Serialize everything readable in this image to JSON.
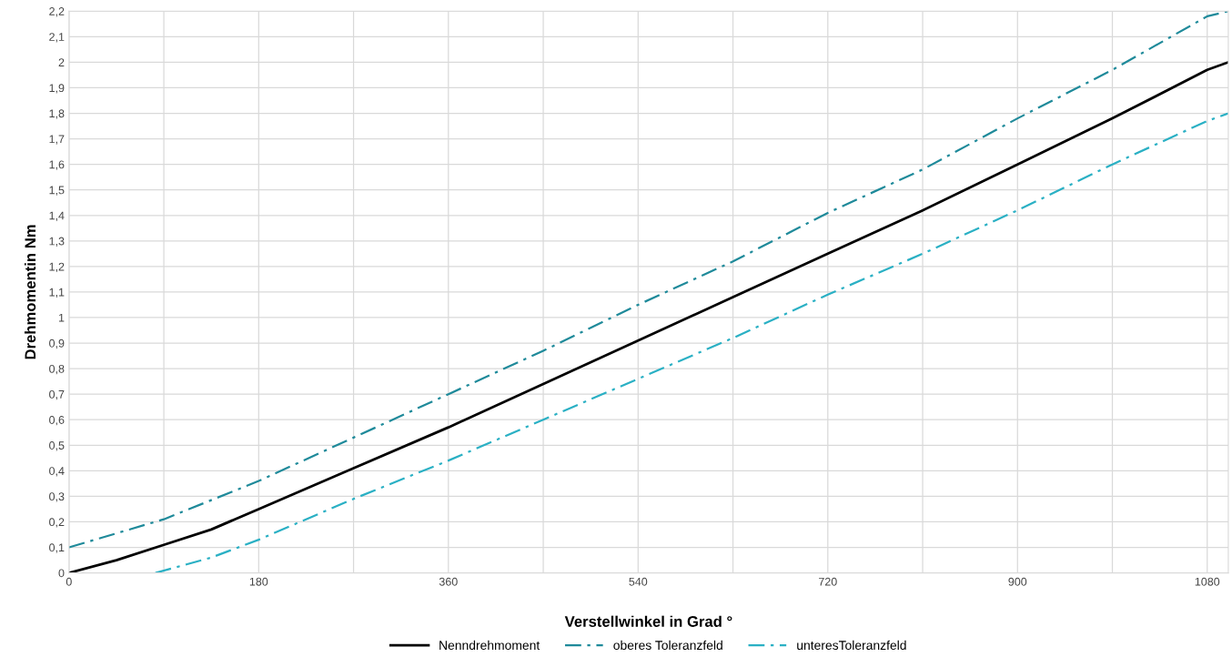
{
  "chart_data": {
    "type": "line",
    "xlabel": "Verstellwinkel in Grad °",
    "ylabel": "Drehmomentin Nm",
    "xlim": [
      0,
      1100
    ],
    "xticks": [
      0,
      {
        "value": 90,
        "label": null
      },
      180,
      {
        "value": 270,
        "label": null
      },
      360,
      {
        "value": 450,
        "label": null
      },
      540,
      {
        "value": 630,
        "label": null
      },
      720,
      {
        "value": 810,
        "label": null
      },
      900,
      {
        "value": 990,
        "label": null
      },
      1080
    ],
    "ylim": [
      0,
      2.2
    ],
    "yticks": [
      {
        "value": 0,
        "label": "0"
      },
      {
        "value": 0.1,
        "label": "0,1"
      },
      {
        "value": 0.2,
        "label": "0,2"
      },
      {
        "value": 0.3,
        "label": "0,3"
      },
      {
        "value": 0.4,
        "label": "0,4"
      },
      {
        "value": 0.5,
        "label": "0,5"
      },
      {
        "value": 0.6,
        "label": "0,6"
      },
      {
        "value": 0.7,
        "label": "0,7"
      },
      {
        "value": 0.8,
        "label": "0,8"
      },
      {
        "value": 0.9,
        "label": "0,9"
      },
      {
        "value": 1,
        "label": "1"
      },
      {
        "value": 1.1,
        "label": "1,1"
      },
      {
        "value": 1.2,
        "label": "1,2"
      },
      {
        "value": 1.3,
        "label": "1,3"
      },
      {
        "value": 1.4,
        "label": "1,4"
      },
      {
        "value": 1.5,
        "label": "1,5"
      },
      {
        "value": 1.6,
        "label": "1,6"
      },
      {
        "value": 1.7,
        "label": "1,7"
      },
      {
        "value": 1.8,
        "label": "1,8"
      },
      {
        "value": 1.9,
        "label": "1,9"
      },
      {
        "value": 2,
        "label": "2"
      },
      {
        "value": 2.1,
        "label": "2,1"
      },
      {
        "value": 2.2,
        "label": "2,2"
      }
    ],
    "grid": true,
    "legend": "bottom",
    "marker": "none",
    "series": [
      {
        "name": "Nenndrehmoment",
        "color": "#000000",
        "line_style": "solid",
        "x": [
          0,
          45,
          90,
          135,
          180,
          270,
          360,
          450,
          540,
          630,
          720,
          810,
          900,
          990,
          1080,
          1100
        ],
        "values": [
          0,
          0.05,
          0.11,
          0.17,
          0.25,
          0.41,
          0.57,
          0.74,
          0.91,
          1.08,
          1.25,
          1.42,
          1.6,
          1.78,
          1.97,
          2.0
        ]
      },
      {
        "name": "oberes Toleranzfeld",
        "color": "#1f8a9a",
        "line_style": "dashdot",
        "x": [
          0,
          90,
          180,
          270,
          360,
          450,
          540,
          630,
          720,
          810,
          900,
          990,
          1080,
          1100
        ],
        "values": [
          0.1,
          0.21,
          0.36,
          0.53,
          0.7,
          0.87,
          1.05,
          1.22,
          1.41,
          1.58,
          1.78,
          1.97,
          2.18,
          2.2
        ]
      },
      {
        "name": "unteresToleranzfeld",
        "color": "#2ab0c4",
        "line_style": "dashdot",
        "x": [
          82,
          135,
          180,
          270,
          360,
          450,
          540,
          630,
          720,
          810,
          900,
          990,
          1080,
          1100
        ],
        "values": [
          0,
          0.06,
          0.13,
          0.29,
          0.44,
          0.6,
          0.76,
          0.92,
          1.09,
          1.25,
          1.42,
          1.6,
          1.77,
          1.8
        ]
      }
    ]
  }
}
